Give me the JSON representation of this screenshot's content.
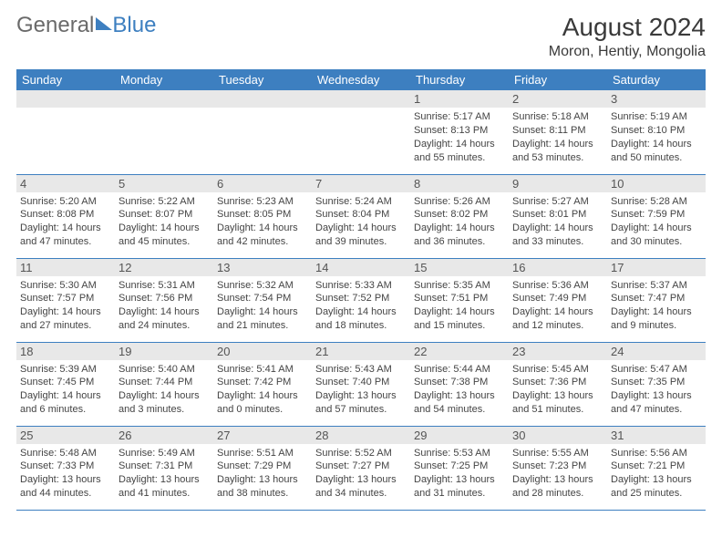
{
  "brand": {
    "part1": "General",
    "part2": "Blue"
  },
  "title": "August 2024",
  "location": "Moron, Hentiy, Mongolia",
  "colors": {
    "header_bg": "#3d7fc0",
    "header_text": "#ffffff",
    "daynum_bg": "#e8e8e8",
    "cell_border": "#3d7fc0",
    "body_text": "#444444",
    "logo_gray": "#6a6a6a"
  },
  "fonts": {
    "title_size": 28,
    "location_size": 16,
    "dow_size": 13,
    "info_size": 11
  },
  "days_of_week": [
    "Sunday",
    "Monday",
    "Tuesday",
    "Wednesday",
    "Thursday",
    "Friday",
    "Saturday"
  ],
  "weeks": [
    [
      null,
      null,
      null,
      null,
      {
        "n": "1",
        "sunrise": "5:17 AM",
        "sunset": "8:13 PM",
        "daylight": "14 hours and 55 minutes."
      },
      {
        "n": "2",
        "sunrise": "5:18 AM",
        "sunset": "8:11 PM",
        "daylight": "14 hours and 53 minutes."
      },
      {
        "n": "3",
        "sunrise": "5:19 AM",
        "sunset": "8:10 PM",
        "daylight": "14 hours and 50 minutes."
      }
    ],
    [
      {
        "n": "4",
        "sunrise": "5:20 AM",
        "sunset": "8:08 PM",
        "daylight": "14 hours and 47 minutes."
      },
      {
        "n": "5",
        "sunrise": "5:22 AM",
        "sunset": "8:07 PM",
        "daylight": "14 hours and 45 minutes."
      },
      {
        "n": "6",
        "sunrise": "5:23 AM",
        "sunset": "8:05 PM",
        "daylight": "14 hours and 42 minutes."
      },
      {
        "n": "7",
        "sunrise": "5:24 AM",
        "sunset": "8:04 PM",
        "daylight": "14 hours and 39 minutes."
      },
      {
        "n": "8",
        "sunrise": "5:26 AM",
        "sunset": "8:02 PM",
        "daylight": "14 hours and 36 minutes."
      },
      {
        "n": "9",
        "sunrise": "5:27 AM",
        "sunset": "8:01 PM",
        "daylight": "14 hours and 33 minutes."
      },
      {
        "n": "10",
        "sunrise": "5:28 AM",
        "sunset": "7:59 PM",
        "daylight": "14 hours and 30 minutes."
      }
    ],
    [
      {
        "n": "11",
        "sunrise": "5:30 AM",
        "sunset": "7:57 PM",
        "daylight": "14 hours and 27 minutes."
      },
      {
        "n": "12",
        "sunrise": "5:31 AM",
        "sunset": "7:56 PM",
        "daylight": "14 hours and 24 minutes."
      },
      {
        "n": "13",
        "sunrise": "5:32 AM",
        "sunset": "7:54 PM",
        "daylight": "14 hours and 21 minutes."
      },
      {
        "n": "14",
        "sunrise": "5:33 AM",
        "sunset": "7:52 PM",
        "daylight": "14 hours and 18 minutes."
      },
      {
        "n": "15",
        "sunrise": "5:35 AM",
        "sunset": "7:51 PM",
        "daylight": "14 hours and 15 minutes."
      },
      {
        "n": "16",
        "sunrise": "5:36 AM",
        "sunset": "7:49 PM",
        "daylight": "14 hours and 12 minutes."
      },
      {
        "n": "17",
        "sunrise": "5:37 AM",
        "sunset": "7:47 PM",
        "daylight": "14 hours and 9 minutes."
      }
    ],
    [
      {
        "n": "18",
        "sunrise": "5:39 AM",
        "sunset": "7:45 PM",
        "daylight": "14 hours and 6 minutes."
      },
      {
        "n": "19",
        "sunrise": "5:40 AM",
        "sunset": "7:44 PM",
        "daylight": "14 hours and 3 minutes."
      },
      {
        "n": "20",
        "sunrise": "5:41 AM",
        "sunset": "7:42 PM",
        "daylight": "14 hours and 0 minutes."
      },
      {
        "n": "21",
        "sunrise": "5:43 AM",
        "sunset": "7:40 PM",
        "daylight": "13 hours and 57 minutes."
      },
      {
        "n": "22",
        "sunrise": "5:44 AM",
        "sunset": "7:38 PM",
        "daylight": "13 hours and 54 minutes."
      },
      {
        "n": "23",
        "sunrise": "5:45 AM",
        "sunset": "7:36 PM",
        "daylight": "13 hours and 51 minutes."
      },
      {
        "n": "24",
        "sunrise": "5:47 AM",
        "sunset": "7:35 PM",
        "daylight": "13 hours and 47 minutes."
      }
    ],
    [
      {
        "n": "25",
        "sunrise": "5:48 AM",
        "sunset": "7:33 PM",
        "daylight": "13 hours and 44 minutes."
      },
      {
        "n": "26",
        "sunrise": "5:49 AM",
        "sunset": "7:31 PM",
        "daylight": "13 hours and 41 minutes."
      },
      {
        "n": "27",
        "sunrise": "5:51 AM",
        "sunset": "7:29 PM",
        "daylight": "13 hours and 38 minutes."
      },
      {
        "n": "28",
        "sunrise": "5:52 AM",
        "sunset": "7:27 PM",
        "daylight": "13 hours and 34 minutes."
      },
      {
        "n": "29",
        "sunrise": "5:53 AM",
        "sunset": "7:25 PM",
        "daylight": "13 hours and 31 minutes."
      },
      {
        "n": "30",
        "sunrise": "5:55 AM",
        "sunset": "7:23 PM",
        "daylight": "13 hours and 28 minutes."
      },
      {
        "n": "31",
        "sunrise": "5:56 AM",
        "sunset": "7:21 PM",
        "daylight": "13 hours and 25 minutes."
      }
    ]
  ],
  "labels": {
    "sunrise": "Sunrise:",
    "sunset": "Sunset:",
    "daylight": "Daylight:"
  }
}
